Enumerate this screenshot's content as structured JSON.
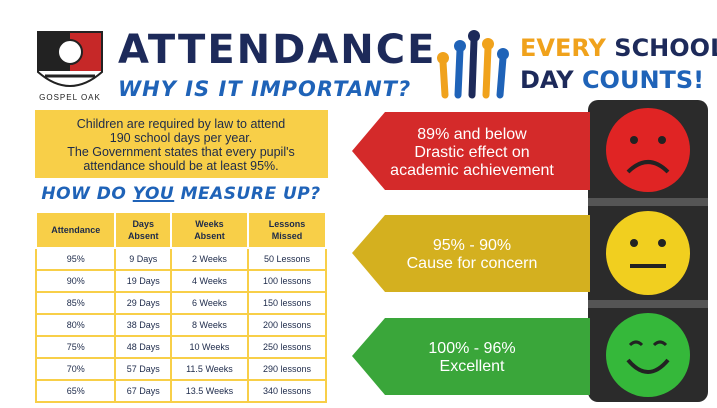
{
  "logo": {
    "text": "GOSPEL OAK"
  },
  "header": {
    "title": "ATTENDANCE",
    "subtitle": "WHY IS IT IMPORTANT?"
  },
  "slogan": {
    "line1": [
      "EVERY",
      "SCHOOL"
    ],
    "line2": [
      "DAY",
      "COUNTS!"
    ]
  },
  "info": {
    "lines": [
      "Children are required by law to attend",
      "190 school days per year.",
      "The Government states that every pupil's",
      "attendance should be at least 95%."
    ]
  },
  "measure_heading": [
    "HOW DO",
    "YOU",
    "MEASURE UP?"
  ],
  "table": {
    "headers": [
      [
        "Attendance"
      ],
      [
        "Days",
        "Absent"
      ],
      [
        "Weeks",
        "Absent"
      ],
      [
        "Lessons",
        "Missed"
      ]
    ],
    "rows": [
      [
        "95%",
        "9 Days",
        "2 Weeks",
        "50 Lessons"
      ],
      [
        "90%",
        "19 Days",
        "4 Weeks",
        "100 lessons"
      ],
      [
        "85%",
        "29 Days",
        "6 Weeks",
        "150 lessons"
      ],
      [
        "80%",
        "38 Days",
        "8 Weeks",
        "200 lessons"
      ],
      [
        "75%",
        "48 Days",
        "10 Weeks",
        "250 lessons"
      ],
      [
        "70%",
        "57 Days",
        "11.5 Weeks",
        "290 lessons"
      ],
      [
        "65%",
        "67 Days",
        "13.5 Weeks",
        "340 lessons"
      ]
    ]
  },
  "levels": [
    {
      "lines": [
        "89% and below",
        "Drastic effect on",
        "academic achievement"
      ]
    },
    {
      "lines": [
        "95% - 90%",
        "Cause for concern"
      ]
    },
    {
      "lines": [
        "100% - 96%",
        "Excellent"
      ]
    }
  ]
}
